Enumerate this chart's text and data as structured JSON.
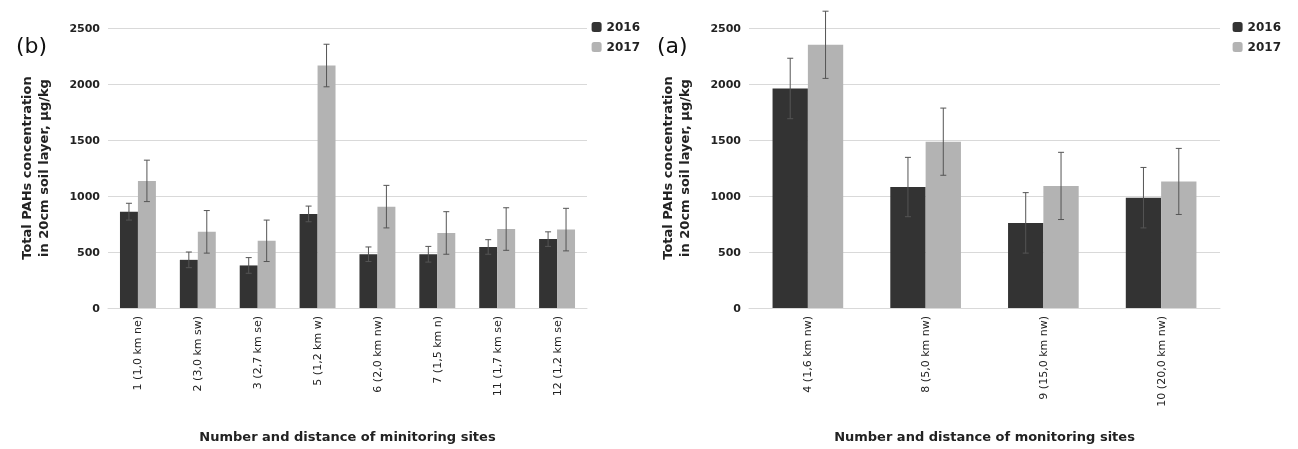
{
  "chart_data": [
    {
      "type": "bar",
      "annotations": [
        "(b)"
      ],
      "xlabel": "Number and distance of minitoring sites",
      "ylabel": "Total PAHs concentration\nin 20cm soil layer, µg/kg",
      "categories": [
        "1 (1,0 km ne)",
        "2 (3,0 km sw)",
        "3 (2,7 km se)",
        "5 (1,2 km w)",
        "6 (2,0 km nw)",
        "7 (1,5 km n)",
        "11 (1,7 km se)",
        "12 (1,2 km se)"
      ],
      "series": [
        {
          "name": "2016",
          "color": "#333333",
          "values": [
            860,
            430,
            380,
            840,
            480,
            480,
            545,
            615
          ],
          "errors": [
            75,
            70,
            70,
            70,
            65,
            70,
            65,
            65
          ]
        },
        {
          "name": "2017",
          "color": "#b3b3b3",
          "values": [
            1135,
            680,
            600,
            2165,
            905,
            670,
            705,
            700
          ],
          "errors": [
            185,
            190,
            185,
            190,
            190,
            190,
            190,
            190
          ]
        }
      ],
      "ylim": [
        0,
        2500
      ],
      "yticks": [
        0,
        500,
        1000,
        1500,
        2000,
        2500
      ],
      "grid": "y",
      "legend": "top right"
    },
    {
      "type": "bar",
      "annotations": [
        "(a)"
      ],
      "xlabel": "Number and distance of monitoring sites",
      "ylabel": "Total PAHs concentration\nin 20cm soil layer, µg/kg",
      "categories": [
        "4 (1,6 km nw)",
        "8 (5,0 km nw)",
        "9 (15,0 km nw)",
        "10 (20,0 km nw)"
      ],
      "series": [
        {
          "name": "2016",
          "color": "#333333",
          "values": [
            1960,
            1080,
            760,
            985
          ],
          "errors": [
            270,
            265,
            270,
            270
          ]
        },
        {
          "name": "2017",
          "color": "#b3b3b3",
          "values": [
            2350,
            1485,
            1090,
            1130
          ],
          "errors": [
            300,
            300,
            300,
            295
          ]
        }
      ],
      "ylim": [
        0,
        2500
      ],
      "yticks": [
        0,
        500,
        1000,
        1500,
        2000,
        2500
      ],
      "grid": "y",
      "legend": "top right"
    }
  ]
}
